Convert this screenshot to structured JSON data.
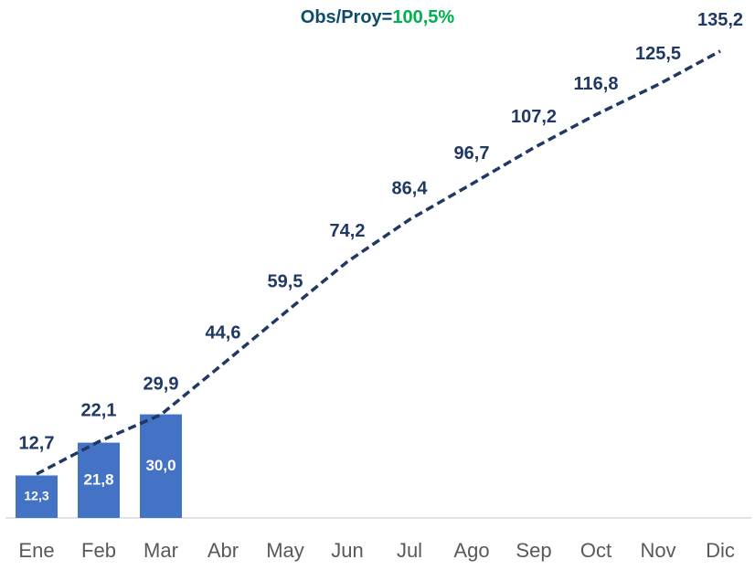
{
  "chart_data": {
    "type": "bar-line",
    "title": "Obs/Proy=",
    "title_highlight": "100,5%",
    "title_color": "#0e4c6e",
    "title_highlight_color": "#00b050",
    "categories": [
      "Ene",
      "Feb",
      "Mar",
      "Abr",
      "May",
      "Jun",
      "Jul",
      "Ago",
      "Sep",
      "Oct",
      "Nov",
      "Dic"
    ],
    "series": [
      {
        "kind": "bar",
        "color": "#4472c4",
        "values": [
          12.3,
          21.8,
          30.0,
          null,
          null,
          null,
          null,
          null,
          null,
          null,
          null,
          null
        ],
        "value_labels": [
          "12,3",
          "21,8",
          "30,0",
          null,
          null,
          null,
          null,
          null,
          null,
          null,
          null,
          null
        ]
      },
      {
        "kind": "line",
        "color": "#1f3864",
        "dashed": true,
        "values": [
          12.7,
          22.1,
          29.9,
          44.6,
          59.5,
          74.2,
          86.4,
          96.7,
          107.2,
          116.8,
          125.5,
          135.2
        ],
        "value_labels": [
          "12,7",
          "22,1",
          "29,9",
          "44,6",
          "59,5",
          "74,2",
          "86,4",
          "96,7",
          "107,2",
          "116,8",
          "125,5",
          "135,2"
        ]
      }
    ],
    "ylim": [
      0,
      150
    ]
  }
}
